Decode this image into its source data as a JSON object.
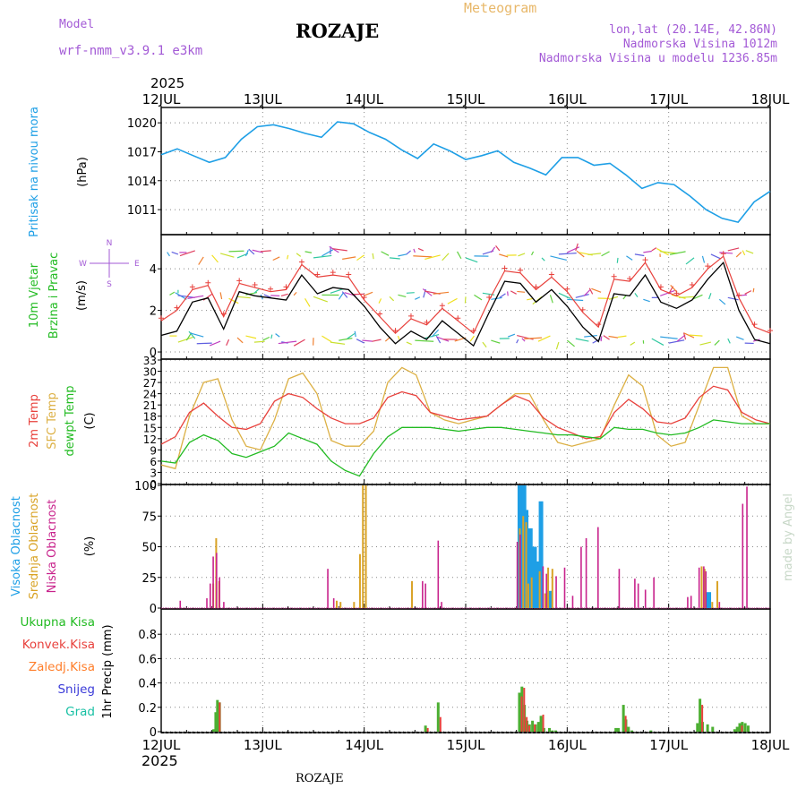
{
  "header": {
    "model_label": "Model",
    "model_name": "wrf-nmm_v3.9.1  e3km",
    "station": "ROZAJE",
    "product": "Meteogram",
    "lonlat": "lon,lat (20.14E, 42.86N)",
    "altitude": "Nadmorska Visina 1012m",
    "model_altitude": "Nadmorska Visina u modelu 1236.85m",
    "year": "2025",
    "footer_station": "ROZAJE",
    "credit": "made by Angel"
  },
  "colors": {
    "pressure": "#1e9fe6",
    "temp2m": "#e8413c",
    "sfc": "#dcb044",
    "dewpt": "#22bb22",
    "high": "#1e9fe6",
    "mid": "#d9a326",
    "low": "#c8238c",
    "total": "#22bb22",
    "conv": "#e8413c",
    "frozen": "#ff7e2a",
    "snow": "#3b3bd8",
    "grad": "#18c0a4",
    "purple": "#a35ad6"
  },
  "chart_data": [
    {
      "id": "pressure",
      "type": "line",
      "ylabel": [
        "Pritisak na nivou mora",
        "(hPa)"
      ],
      "yticks": [
        1011,
        1014,
        1017,
        1020
      ],
      "ylim": [
        1008.5,
        1021.5
      ],
      "series": [
        {
          "name": "MSLP",
          "values": [
            1016.7,
            1017.3,
            1016.6,
            1015.9,
            1016.4,
            1018.3,
            1019.6,
            1019.8,
            1019.4,
            1018.9,
            1018.5,
            1020.1,
            1019.9,
            1019.0,
            1018.3,
            1017.2,
            1016.3,
            1017.8,
            1017.1,
            1016.2,
            1016.6,
            1017.1,
            1015.9,
            1015.3,
            1014.6,
            1016.4,
            1016.4,
            1015.6,
            1015.8,
            1014.6,
            1013.2,
            1013.8,
            1013.6,
            1012.4,
            1011.0,
            1010.1,
            1009.7,
            1011.8,
            1012.9
          ]
        }
      ]
    },
    {
      "id": "wind",
      "type": "line",
      "ylabel": [
        "10m Vjetar",
        "Brzina i Pravac",
        "(m/s)"
      ],
      "compass": {
        "n": "N",
        "s": "S",
        "w": "W",
        "e": "E"
      },
      "yticks": [
        0,
        2,
        4
      ],
      "ylim": [
        -0.3,
        5.6
      ],
      "series": [
        {
          "name": "speed",
          "values": [
            0.8,
            1.0,
            2.4,
            2.6,
            1.1,
            2.9,
            2.7,
            2.6,
            2.5,
            3.7,
            2.8,
            3.1,
            3.0,
            2.2,
            1.2,
            0.4,
            1.0,
            0.6,
            1.5,
            0.9,
            0.3,
            1.9,
            3.4,
            3.3,
            2.4,
            3.0,
            2.2,
            1.2,
            0.5,
            2.8,
            2.7,
            3.7,
            2.4,
            2.1,
            2.5,
            3.5,
            4.3,
            2.0,
            0.6,
            0.4
          ]
        },
        {
          "name": "gust",
          "values": [
            1.5,
            2.0,
            3.0,
            3.2,
            1.7,
            3.3,
            3.1,
            2.9,
            3.0,
            4.2,
            3.6,
            3.7,
            3.6,
            2.5,
            1.7,
            0.9,
            1.6,
            1.3,
            2.1,
            1.5,
            0.9,
            2.5,
            3.9,
            3.8,
            3.0,
            3.6,
            2.9,
            1.9,
            1.2,
            3.5,
            3.4,
            4.3,
            3.0,
            2.7,
            3.1,
            4.0,
            4.6,
            2.6,
            1.2,
            0.9
          ]
        }
      ]
    },
    {
      "id": "temperature",
      "type": "line",
      "ylabel": [
        "2m Temp",
        "SFC Temp",
        "dewpt Temp",
        "(C)"
      ],
      "yticks": [
        0,
        3,
        6,
        9,
        12,
        15,
        18,
        21,
        24,
        27,
        30,
        33
      ],
      "ylim": [
        0,
        33
      ],
      "series": [
        {
          "name": "2m Temp",
          "values": [
            10.5,
            12.5,
            19.0,
            21.5,
            18.0,
            15.0,
            14.5,
            16.0,
            22.0,
            24.0,
            23.0,
            20.0,
            17.5,
            16.0,
            16.0,
            17.5,
            23.0,
            24.5,
            23.5,
            19.0,
            18.0,
            17.0,
            17.5,
            18.0,
            21.0,
            23.5,
            22.0,
            17.5,
            15.0,
            13.5,
            12.0,
            12.5,
            19.0,
            22.5,
            20.0,
            16.5,
            16.0,
            17.5,
            23.0,
            26.0,
            25.0,
            19.0,
            17.0,
            16.0
          ]
        },
        {
          "name": "SFC Temp",
          "values": [
            5.0,
            4.0,
            18.0,
            27.0,
            28.0,
            17.0,
            10.0,
            9.0,
            17.0,
            28.0,
            29.5,
            24.0,
            11.5,
            10.0,
            10.0,
            14.0,
            27.0,
            31.0,
            29.0,
            19.0,
            17.0,
            16.0,
            17.0,
            18.0,
            21.0,
            24.0,
            24.0,
            17.0,
            11.0,
            10.0,
            11.0,
            12.0,
            21.0,
            29.0,
            26.0,
            13.0,
            10.0,
            11.0,
            21.0,
            31.0,
            31.0,
            18.0,
            16.0,
            16.0
          ]
        },
        {
          "name": "dewpt Temp",
          "values": [
            6.0,
            5.5,
            11.0,
            13.0,
            11.5,
            8.0,
            7.0,
            8.5,
            10.0,
            13.5,
            12.0,
            10.5,
            6.0,
            3.5,
            2.0,
            8.0,
            12.5,
            15.0,
            15.0,
            15.0,
            14.5,
            14.0,
            14.5,
            15.0,
            15.0,
            14.5,
            14.0,
            13.5,
            13.0,
            13.0,
            12.5,
            12.0,
            15.0,
            14.5,
            14.5,
            13.5,
            13.0,
            13.5,
            15.0,
            17.0,
            16.5,
            16.0,
            16.0,
            16.0
          ]
        }
      ]
    },
    {
      "id": "clouds",
      "type": "bar",
      "ylabel": [
        "Visoka Oblacnost",
        "Srednja Oblacnost",
        "Niska Oblacnost",
        "(%)"
      ],
      "yticks": [
        0,
        25,
        50,
        75,
        100
      ],
      "ylim": [
        0,
        100
      ],
      "x_unit": "hours since 12JUL 00",
      "series": [
        {
          "name": "Visoka",
          "values": [
            [
              84.8,
              100
            ],
            [
              85.3,
              100
            ],
            [
              85.8,
              100
            ],
            [
              86.3,
              80
            ],
            [
              87.3,
              65
            ],
            [
              88.3,
              50
            ],
            [
              88.8,
              37
            ],
            [
              89.3,
              38
            ],
            [
              89.8,
              87
            ],
            [
              91.8,
              14
            ],
            [
              128.8,
              12
            ],
            [
              129.5,
              13
            ]
          ]
        },
        {
          "name": "Srednja",
          "values": [
            [
              12.3,
              20
            ],
            [
              13.0,
              57
            ],
            [
              13.7,
              22
            ],
            [
              41.5,
              6
            ],
            [
              42.4,
              5
            ],
            [
              45.6,
              5
            ],
            [
              47.0,
              44
            ],
            [
              47.7,
              100
            ],
            [
              48.4,
              100
            ],
            [
              59.3,
              22
            ],
            [
              84.8,
              65
            ],
            [
              85.6,
              75
            ],
            [
              86.3,
              70
            ],
            [
              86.8,
              20
            ],
            [
              87.6,
              25
            ],
            [
              89.5,
              30
            ],
            [
              90.8,
              12
            ],
            [
              91.5,
              33
            ],
            [
              92.5,
              32
            ],
            [
              127.8,
              34
            ],
            [
              128.5,
              32
            ],
            [
              130.3,
              5
            ],
            [
              131.5,
              22
            ]
          ]
        },
        {
          "name": "Niska",
          "values": [
            [
              4.5,
              6
            ],
            [
              10.8,
              8
            ],
            [
              11.6,
              20
            ],
            [
              12.3,
              42
            ],
            [
              13.1,
              45
            ],
            [
              13.8,
              25
            ],
            [
              14.8,
              5
            ],
            [
              39.4,
              32
            ],
            [
              40.8,
              8
            ],
            [
              61.8,
              22
            ],
            [
              62.5,
              20
            ],
            [
              65.5,
              55
            ],
            [
              66.3,
              5
            ],
            [
              84.2,
              54
            ],
            [
              84.9,
              60
            ],
            [
              90.3,
              34
            ],
            [
              91.1,
              28
            ],
            [
              93.4,
              26
            ],
            [
              95.4,
              33
            ],
            [
              97.3,
              10
            ],
            [
              99.3,
              50
            ],
            [
              100.5,
              57
            ],
            [
              103.3,
              66
            ],
            [
              108.3,
              32
            ],
            [
              112.0,
              24
            ],
            [
              112.8,
              20
            ],
            [
              114.5,
              15
            ],
            [
              116.5,
              25
            ],
            [
              124.5,
              9
            ],
            [
              125.3,
              10
            ],
            [
              127.2,
              33
            ],
            [
              128.3,
              34
            ],
            [
              128.8,
              30
            ],
            [
              132.0,
              5
            ],
            [
              137.5,
              85
            ],
            [
              138.5,
              99
            ]
          ]
        }
      ]
    },
    {
      "id": "precipitation",
      "type": "bar",
      "ylabel": [
        "1hr Precip (mm)"
      ],
      "legend": [
        "Ukupna Kisa",
        "Konvek.Kisa",
        "Zaledj.Kisa",
        "Snijeg",
        "Grad"
      ],
      "yticks": [
        0,
        0.2,
        0.4,
        0.6,
        0.8
      ],
      "ylim": [
        0,
        1.0
      ],
      "x_unit": "hours since 12JUL 00",
      "series": [
        {
          "name": "Ukupna Kisa",
          "values": [
            [
              12.4,
              0.02
            ],
            [
              12.9,
              0.16
            ],
            [
              13.3,
              0.26
            ],
            [
              13.8,
              0.24
            ],
            [
              62.5,
              0.05
            ],
            [
              65.5,
              0.24
            ],
            [
              84.7,
              0.32
            ],
            [
              85.3,
              0.37
            ],
            [
              85.9,
              0.22
            ],
            [
              86.5,
              0.09
            ],
            [
              87.1,
              0.06
            ],
            [
              87.8,
              0.09
            ],
            [
              88.5,
              0.06
            ],
            [
              89.2,
              0.08
            ],
            [
              89.8,
              0.13
            ],
            [
              90.5,
              0.03
            ],
            [
              91.8,
              0.03
            ],
            [
              92.5,
              0.01
            ],
            [
              93.3,
              0.01
            ],
            [
              107.5,
              0.03
            ],
            [
              108.1,
              0.03
            ],
            [
              109.3,
              0.22
            ],
            [
              109.9,
              0.1
            ],
            [
              110.5,
              0.04
            ],
            [
              111.3,
              0.01
            ],
            [
              115.8,
              0.01
            ],
            [
              126.8,
              0.07
            ],
            [
              127.4,
              0.27
            ],
            [
              128.0,
              0.08
            ],
            [
              129.2,
              0.06
            ],
            [
              130.4,
              0.04
            ],
            [
              135.6,
              0.02
            ],
            [
              136.2,
              0.04
            ],
            [
              136.8,
              0.07
            ],
            [
              137.4,
              0.08
            ],
            [
              138.1,
              0.07
            ],
            [
              138.8,
              0.05
            ]
          ]
        },
        {
          "name": "Konvek.Kisa",
          "values": [
            [
              13.3,
              0.24
            ],
            [
              62.5,
              0.03
            ],
            [
              65.5,
              0.12
            ],
            [
              84.7,
              0.29
            ],
            [
              85.3,
              0.36
            ],
            [
              85.9,
              0.12
            ],
            [
              86.5,
              0.05
            ],
            [
              87.8,
              0.06
            ],
            [
              89.8,
              0.14
            ],
            [
              109.3,
              0.13
            ],
            [
              127.4,
              0.22
            ],
            [
              136.8,
              0.05
            ]
          ]
        }
      ]
    }
  ],
  "x_axis": {
    "hours_total": 144,
    "ticks": [
      {
        "hour": 0,
        "label": "12JUL"
      },
      {
        "hour": 24,
        "label": "13JUL"
      },
      {
        "hour": 48,
        "label": "14JUL"
      },
      {
        "hour": 72,
        "label": "15JUL"
      },
      {
        "hour": 96,
        "label": "16JUL"
      },
      {
        "hour": 120,
        "label": "17JUL"
      },
      {
        "hour": 144,
        "label": "18JUL"
      }
    ]
  }
}
